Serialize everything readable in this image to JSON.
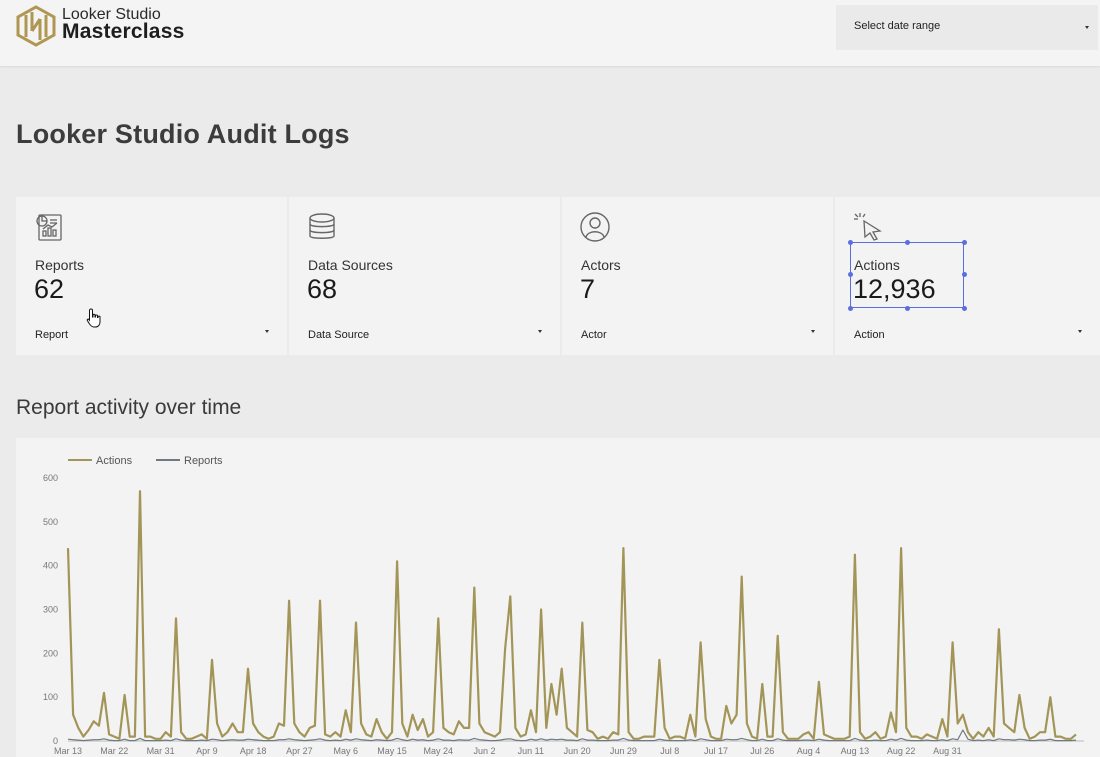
{
  "header": {
    "brand_line1": "Looker Studio",
    "brand_line2": "Masterclass",
    "date_range_label": "Select date range"
  },
  "page_title": "Looker Studio Audit Logs",
  "kpis": [
    {
      "label": "Reports",
      "value": "62",
      "filter": "Report",
      "icon": "report-chart-icon"
    },
    {
      "label": "Data Sources",
      "value": "68",
      "filter": "Data Source",
      "icon": "database-icon"
    },
    {
      "label": "Actors",
      "value": "7",
      "filter": "Actor",
      "icon": "user-circle-icon"
    },
    {
      "label": "Actions",
      "value": "12,936",
      "filter": "Action",
      "icon": "click-cursor-icon"
    }
  ],
  "section_title": "Report activity over time",
  "colors": {
    "actions_series": "#a39558",
    "reports_series": "#6e7a80",
    "selection": "#5b6ee0",
    "card_bg": "#f3f3f3",
    "page_bg": "#ebebeb"
  },
  "chart_data": {
    "type": "line",
    "legend": [
      "Actions",
      "Reports"
    ],
    "legend_position": "top-left",
    "ylim": [
      0,
      600
    ],
    "yticks": [
      0,
      100,
      200,
      300,
      400,
      500,
      600
    ],
    "xtick_labels": [
      "Mar 13",
      "Mar 22",
      "Mar 31",
      "Apr 9",
      "Apr 18",
      "Apr 27",
      "May 6",
      "May 15",
      "May 24",
      "Jun 2",
      "Jun 11",
      "Jun 20",
      "Jun 29",
      "Jul 8",
      "Jul 17",
      "Jul 26",
      "Aug 4",
      "Aug 13",
      "Aug 22",
      "Aug 31"
    ],
    "start_date": "Mar 13",
    "series": [
      {
        "name": "Actions",
        "values": [
          440,
          60,
          30,
          10,
          25,
          45,
          35,
          110,
          15,
          10,
          5,
          105,
          10,
          10,
          570,
          10,
          10,
          5,
          5,
          20,
          10,
          280,
          20,
          5,
          5,
          10,
          15,
          5,
          185,
          40,
          10,
          20,
          40,
          20,
          20,
          165,
          40,
          20,
          10,
          5,
          10,
          40,
          35,
          320,
          40,
          20,
          10,
          30,
          35,
          320,
          15,
          10,
          20,
          10,
          70,
          20,
          270,
          40,
          15,
          10,
          50,
          20,
          5,
          20,
          410,
          40,
          10,
          60,
          25,
          50,
          10,
          20,
          280,
          30,
          20,
          15,
          45,
          30,
          30,
          350,
          40,
          20,
          15,
          10,
          20,
          210,
          330,
          30,
          10,
          15,
          70,
          20,
          300,
          30,
          130,
          60,
          165,
          30,
          20,
          10,
          270,
          25,
          20,
          5,
          10,
          5,
          20,
          15,
          440,
          20,
          5,
          5,
          10,
          10,
          10,
          185,
          30,
          5,
          10,
          10,
          5,
          60,
          10,
          225,
          50,
          10,
          5,
          5,
          80,
          40,
          60,
          375,
          40,
          10,
          5,
          130,
          10,
          10,
          240,
          20,
          5,
          5,
          5,
          15,
          20,
          5,
          135,
          15,
          10,
          5,
          5,
          5,
          10,
          425,
          20,
          5,
          10,
          20,
          5,
          10,
          65,
          20,
          440,
          30,
          10,
          10,
          5,
          15,
          10,
          5,
          50,
          10,
          225,
          40,
          60,
          20,
          5,
          20,
          10,
          30,
          10,
          255,
          40,
          30,
          20,
          105,
          30,
          5,
          10,
          20,
          20,
          100,
          10,
          10,
          5,
          5,
          15
        ]
      },
      {
        "name": "Reports",
        "values": [
          4,
          3,
          2,
          1,
          2,
          3,
          3,
          5,
          2,
          1,
          1,
          4,
          1,
          1,
          6,
          1,
          1,
          1,
          1,
          2,
          1,
          5,
          2,
          1,
          1,
          1,
          2,
          1,
          4,
          3,
          1,
          2,
          3,
          2,
          2,
          4,
          3,
          2,
          1,
          1,
          1,
          3,
          3,
          5,
          3,
          2,
          1,
          2,
          3,
          5,
          2,
          1,
          2,
          1,
          4,
          2,
          5,
          3,
          2,
          1,
          3,
          2,
          1,
          2,
          6,
          3,
          1,
          4,
          2,
          3,
          1,
          2,
          5,
          2,
          2,
          1,
          3,
          2,
          2,
          6,
          3,
          2,
          1,
          1,
          2,
          4,
          5,
          2,
          1,
          1,
          4,
          2,
          5,
          2,
          4,
          3,
          4,
          2,
          2,
          1,
          5,
          2,
          2,
          1,
          1,
          1,
          2,
          2,
          6,
          2,
          1,
          1,
          1,
          1,
          1,
          4,
          2,
          1,
          1,
          1,
          1,
          3,
          1,
          5,
          3,
          1,
          1,
          1,
          4,
          3,
          3,
          6,
          3,
          1,
          1,
          4,
          1,
          1,
          5,
          2,
          1,
          1,
          1,
          2,
          2,
          1,
          4,
          2,
          1,
          1,
          1,
          1,
          1,
          6,
          2,
          1,
          1,
          2,
          1,
          1,
          4,
          2,
          6,
          2,
          1,
          1,
          1,
          2,
          1,
          1,
          3,
          1,
          5,
          3,
          25,
          4,
          1,
          2,
          1,
          3,
          1,
          5,
          3,
          3,
          2,
          4,
          3,
          1,
          1,
          2,
          2,
          4,
          1,
          1,
          1,
          1,
          2
        ]
      }
    ]
  }
}
